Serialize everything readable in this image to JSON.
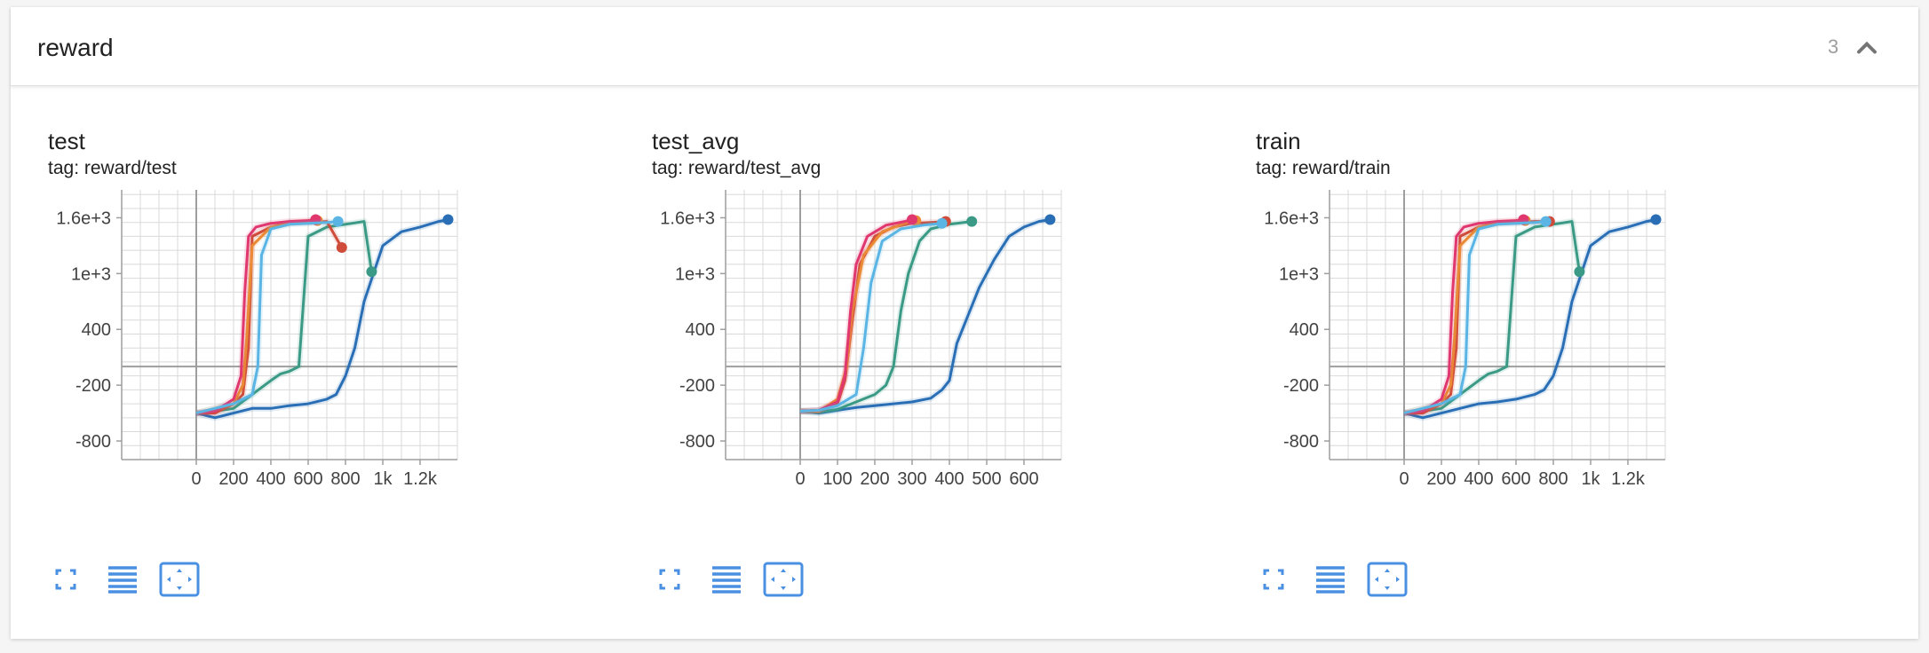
{
  "group": {
    "title": "reward",
    "count": "3"
  },
  "icons": [
    "chevron-up-icon",
    "fullscreen-icon",
    "data-table-icon",
    "fit-domain-icon"
  ],
  "colors": {
    "accent": "#4a90e2",
    "run_blue": "#2a6fb6",
    "run_teal": "#3a9a85",
    "run_red": "#cf4b3a",
    "run_orange": "#ea8a35",
    "run_pink": "#e0376f",
    "run_light_blue": "#5ab4e4"
  },
  "chart_data": [
    {
      "type": "line",
      "title": "test",
      "tag": "tag: reward/test",
      "xlim": [
        -400,
        1400
      ],
      "ylim": [
        -1000,
        1900
      ],
      "xticks": [
        0,
        200,
        400,
        600,
        800,
        1000,
        1200
      ],
      "xtick_labels": [
        "0",
        "200",
        "400",
        "600",
        "800",
        "1k",
        "1.2k"
      ],
      "yticks": [
        -800,
        -200,
        400,
        1000,
        1600
      ],
      "ytick_labels": [
        "-800",
        "-200",
        "400",
        "1e+3",
        "1.6e+3"
      ],
      "series": [
        {
          "color": "#2a6fb6",
          "x": [
            0,
            100,
            200,
            300,
            400,
            500,
            600,
            700,
            750,
            800,
            850,
            900,
            950,
            1000,
            1100,
            1200,
            1300,
            1350
          ],
          "y": [
            -500,
            -550,
            -500,
            -450,
            -450,
            -420,
            -400,
            -350,
            -300,
            -100,
            200,
            700,
            1000,
            1300,
            1450,
            1500,
            1560,
            1580
          ]
        },
        {
          "color": "#3a9a85",
          "x": [
            0,
            100,
            200,
            300,
            400,
            450,
            500,
            550,
            600,
            700,
            800,
            900,
            940
          ],
          "y": [
            -500,
            -480,
            -450,
            -300,
            -150,
            -80,
            -50,
            0,
            1400,
            1500,
            1530,
            1560,
            1020
          ]
        },
        {
          "color": "#cf4b3a",
          "x": [
            0,
            100,
            200,
            250,
            280,
            300,
            400,
            500,
            600,
            700,
            780
          ],
          "y": [
            -500,
            -500,
            -400,
            -300,
            200,
            1400,
            1500,
            1550,
            1550,
            1560,
            1280
          ]
        },
        {
          "color": "#ea8a35",
          "x": [
            0,
            100,
            200,
            250,
            270,
            300,
            400,
            500,
            600,
            650
          ],
          "y": [
            -500,
            -450,
            -400,
            -200,
            300,
            1300,
            1500,
            1540,
            1560,
            1570
          ]
        },
        {
          "color": "#e0376f",
          "x": [
            0,
            100,
            200,
            240,
            260,
            280,
            320,
            400,
            500,
            600,
            640
          ],
          "y": [
            -500,
            -480,
            -350,
            -100,
            800,
            1400,
            1500,
            1540,
            1560,
            1570,
            1580
          ]
        },
        {
          "color": "#5ab4e4",
          "x": [
            0,
            100,
            200,
            300,
            330,
            350,
            400,
            500,
            600,
            700,
            760
          ],
          "y": [
            -500,
            -450,
            -400,
            -300,
            0,
            1200,
            1480,
            1530,
            1540,
            1550,
            1560
          ]
        }
      ]
    },
    {
      "type": "line",
      "title": "test_avg",
      "tag": "tag: reward/test_avg",
      "xlim": [
        -200,
        700
      ],
      "ylim": [
        -1000,
        1900
      ],
      "xticks": [
        0,
        100,
        200,
        300,
        400,
        500,
        600
      ],
      "xtick_labels": [
        "0",
        "100",
        "200",
        "300",
        "400",
        "500",
        "600"
      ],
      "yticks": [
        -800,
        -200,
        400,
        1000,
        1600
      ],
      "ytick_labels": [
        "-800",
        "-200",
        "400",
        "1e+3",
        "1.6e+3"
      ],
      "series": [
        {
          "color": "#2a6fb6",
          "x": [
            0,
            50,
            100,
            150,
            200,
            250,
            300,
            350,
            380,
            400,
            420,
            450,
            480,
            520,
            560,
            600,
            640,
            670
          ],
          "y": [
            -480,
            -500,
            -470,
            -440,
            -420,
            -400,
            -380,
            -340,
            -250,
            -150,
            250,
            550,
            850,
            1150,
            1400,
            1500,
            1560,
            1580
          ]
        },
        {
          "color": "#3a9a85",
          "x": [
            0,
            50,
            100,
            150,
            200,
            230,
            250,
            270,
            290,
            320,
            350,
            400,
            460
          ],
          "y": [
            -480,
            -490,
            -460,
            -380,
            -300,
            -200,
            0,
            600,
            1000,
            1350,
            1480,
            1530,
            1560
          ]
        },
        {
          "color": "#cf4b3a",
          "x": [
            0,
            50,
            100,
            120,
            140,
            160,
            200,
            250,
            300,
            350,
            390
          ],
          "y": [
            -480,
            -470,
            -400,
            -150,
            500,
            1100,
            1400,
            1500,
            1540,
            1550,
            1560
          ]
        },
        {
          "color": "#ea8a35",
          "x": [
            0,
            50,
            100,
            125,
            140,
            170,
            220,
            280,
            310
          ],
          "y": [
            -480,
            -480,
            -350,
            0,
            600,
            1200,
            1450,
            1540,
            1570
          ]
        },
        {
          "color": "#e0376f",
          "x": [
            0,
            50,
            100,
            120,
            135,
            150,
            180,
            230,
            280,
            300
          ],
          "y": [
            -480,
            -470,
            -380,
            -100,
            600,
            1100,
            1400,
            1520,
            1560,
            1580
          ]
        },
        {
          "color": "#5ab4e4",
          "x": [
            0,
            50,
            100,
            150,
            170,
            190,
            220,
            270,
            330,
            380
          ],
          "y": [
            -480,
            -470,
            -420,
            -300,
            200,
            900,
            1350,
            1480,
            1520,
            1540
          ]
        }
      ]
    },
    {
      "type": "line",
      "title": "train",
      "tag": "tag: reward/train",
      "xlim": [
        -400,
        1400
      ],
      "ylim": [
        -1000,
        1900
      ],
      "xticks": [
        0,
        200,
        400,
        600,
        800,
        1000,
        1200
      ],
      "xtick_labels": [
        "0",
        "200",
        "400",
        "600",
        "800",
        "1k",
        "1.2k"
      ],
      "yticks": [
        -800,
        -200,
        400,
        1000,
        1600
      ],
      "ytick_labels": [
        "-800",
        "-200",
        "400",
        "1e+3",
        "1.6e+3"
      ],
      "series": [
        {
          "color": "#2a6fb6",
          "x": [
            0,
            100,
            200,
            300,
            400,
            500,
            600,
            700,
            750,
            800,
            850,
            900,
            950,
            1000,
            1100,
            1200,
            1300,
            1350
          ],
          "y": [
            -500,
            -550,
            -500,
            -450,
            -400,
            -380,
            -350,
            -300,
            -250,
            -100,
            200,
            700,
            1000,
            1300,
            1450,
            1500,
            1560,
            1580
          ]
        },
        {
          "color": "#3a9a85",
          "x": [
            0,
            100,
            200,
            300,
            400,
            450,
            500,
            550,
            600,
            700,
            800,
            900,
            940
          ],
          "y": [
            -500,
            -480,
            -450,
            -300,
            -150,
            -80,
            -50,
            0,
            1400,
            1500,
            1530,
            1560,
            1020
          ]
        },
        {
          "color": "#cf4b3a",
          "x": [
            0,
            100,
            200,
            250,
            280,
            300,
            400,
            500,
            600,
            700,
            780
          ],
          "y": [
            -500,
            -500,
            -400,
            -300,
            200,
            1400,
            1500,
            1550,
            1550,
            1560,
            1560
          ]
        },
        {
          "color": "#ea8a35",
          "x": [
            0,
            100,
            200,
            250,
            270,
            300,
            400,
            500,
            600,
            650
          ],
          "y": [
            -500,
            -450,
            -400,
            -200,
            300,
            1300,
            1500,
            1540,
            1560,
            1570
          ]
        },
        {
          "color": "#e0376f",
          "x": [
            0,
            100,
            200,
            240,
            260,
            280,
            320,
            400,
            500,
            600,
            640
          ],
          "y": [
            -500,
            -480,
            -350,
            -100,
            800,
            1400,
            1500,
            1540,
            1560,
            1570,
            1580
          ]
        },
        {
          "color": "#5ab4e4",
          "x": [
            0,
            100,
            200,
            300,
            330,
            350,
            400,
            500,
            600,
            700,
            760
          ],
          "y": [
            -500,
            -450,
            -400,
            -300,
            0,
            1200,
            1480,
            1530,
            1540,
            1550,
            1560
          ]
        }
      ]
    }
  ]
}
